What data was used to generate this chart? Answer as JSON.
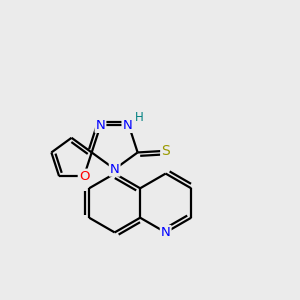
{
  "bg_color": "#ebebeb",
  "bond_color": "#000000",
  "N_color": "#0000ff",
  "O_color": "#ff0000",
  "S_color": "#999900",
  "H_color": "#008080",
  "linewidth": 1.6,
  "figsize": [
    3.0,
    3.0
  ],
  "dpi": 100,
  "xlim": [
    0,
    10
  ],
  "ylim": [
    0,
    10
  ]
}
